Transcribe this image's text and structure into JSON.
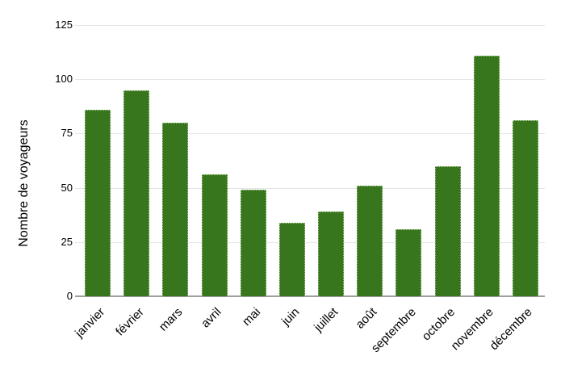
{
  "chart_data": {
    "type": "bar",
    "categories": [
      "janvier",
      "février",
      "mars",
      "avril",
      "mai",
      "juin",
      "juillet",
      "août",
      "septembre",
      "octobre",
      "novembre",
      "décembre"
    ],
    "values": [
      86,
      95,
      80,
      56,
      49,
      34,
      39,
      51,
      31,
      60,
      111,
      81
    ],
    "title": "",
    "xlabel": "",
    "ylabel": "Nombre de voyageurs",
    "ylim": [
      0,
      125
    ],
    "yticks": [
      0,
      25,
      50,
      75,
      100,
      125
    ],
    "grid": true,
    "legend_position": "none",
    "bar_color": "#38761d",
    "bar_border_color": "#a4c88d",
    "gridline_color": "#e6e6e6",
    "axis_line_color": "#9e9e9e",
    "text_color": "#000000",
    "background_color": "#ffffff"
  }
}
